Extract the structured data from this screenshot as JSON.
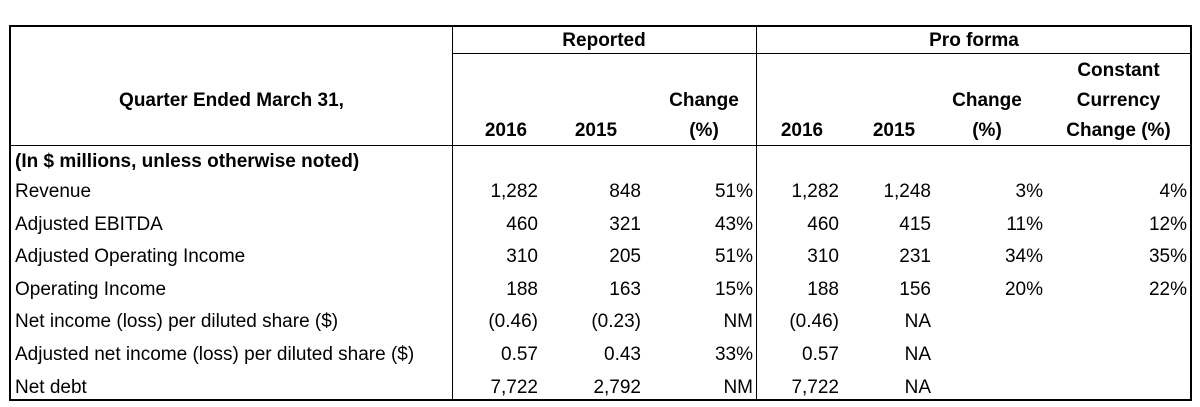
{
  "header": {
    "group_reported": "Reported",
    "group_pro_forma": "Pro forma",
    "row_label": "Quarter Ended March 31,",
    "reported_cols": {
      "y2016": "2016",
      "y2015": "2015",
      "change_line1": "Change",
      "change_line2": "(%)"
    },
    "pro_forma_cols": {
      "y2016": "2016",
      "y2015": "2015",
      "change_line1": "Change",
      "change_line2": "(%)",
      "cc_line1": "Constant",
      "cc_line2": "Currency",
      "cc_line3": "Change (%)"
    }
  },
  "section_label": "(In $ millions, unless otherwise noted)",
  "rows": [
    {
      "label": "Revenue",
      "r2016": "1,282",
      "r2015": "848",
      "rchg": "51%",
      "p2016": "1,282",
      "p2015": "1,248",
      "pchg": "3%",
      "cc": "4%"
    },
    {
      "label": "Adjusted EBITDA",
      "r2016": "460",
      "r2015": "321",
      "rchg": "43%",
      "p2016": "460",
      "p2015": "415",
      "pchg": "11%",
      "cc": "12%"
    },
    {
      "label": "Adjusted Operating Income",
      "r2016": "310",
      "r2015": "205",
      "rchg": "51%",
      "p2016": "310",
      "p2015": "231",
      "pchg": "34%",
      "cc": "35%"
    },
    {
      "label": "Operating Income",
      "r2016": "188",
      "r2015": "163",
      "rchg": "15%",
      "p2016": "188",
      "p2015": "156",
      "pchg": "20%",
      "cc": "22%"
    },
    {
      "label": "Net income (loss) per diluted share ($)",
      "r2016": "(0.46)",
      "r2015": "(0.23)",
      "rchg": "NM",
      "p2016": "(0.46)",
      "p2015": "NA",
      "pchg": "",
      "cc": ""
    },
    {
      "label": "Adjusted net income (loss) per diluted share ($)",
      "r2016": "0.57",
      "r2015": "0.43",
      "rchg": "33%",
      "p2016": "0.57",
      "p2015": "NA",
      "pchg": "",
      "cc": ""
    },
    {
      "label": "Net debt",
      "r2016": "7,722",
      "r2015": "2,792",
      "rchg": "NM",
      "p2016": "7,722",
      "p2015": "NA",
      "pchg": "",
      "cc": ""
    }
  ]
}
